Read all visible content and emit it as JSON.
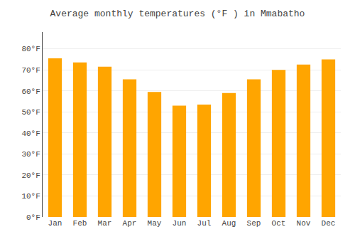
{
  "chart_data": {
    "type": "bar",
    "title": "Average monthly temperatures (°F ) in Mmabatho",
    "categories": [
      "Jan",
      "Feb",
      "Mar",
      "Apr",
      "May",
      "Jun",
      "Jul",
      "Aug",
      "Sep",
      "Oct",
      "Nov",
      "Dec"
    ],
    "values": [
      75.5,
      73.5,
      71.5,
      65.5,
      59.5,
      53.0,
      53.5,
      59.0,
      65.5,
      70.0,
      72.5,
      75.0
    ],
    "color": "#FFA500",
    "ylim": [
      0,
      88
    ],
    "yticks": [
      {
        "value": 0,
        "label": "0°F"
      },
      {
        "value": 10,
        "label": "10°F"
      },
      {
        "value": 20,
        "label": "20°F"
      },
      {
        "value": 30,
        "label": "30°F"
      },
      {
        "value": 40,
        "label": "40°F"
      },
      {
        "value": 50,
        "label": "50°F"
      },
      {
        "value": 60,
        "label": "60°F"
      },
      {
        "value": 70,
        "label": "70°F"
      },
      {
        "value": 80,
        "label": "80°F"
      }
    ],
    "grid": true
  }
}
